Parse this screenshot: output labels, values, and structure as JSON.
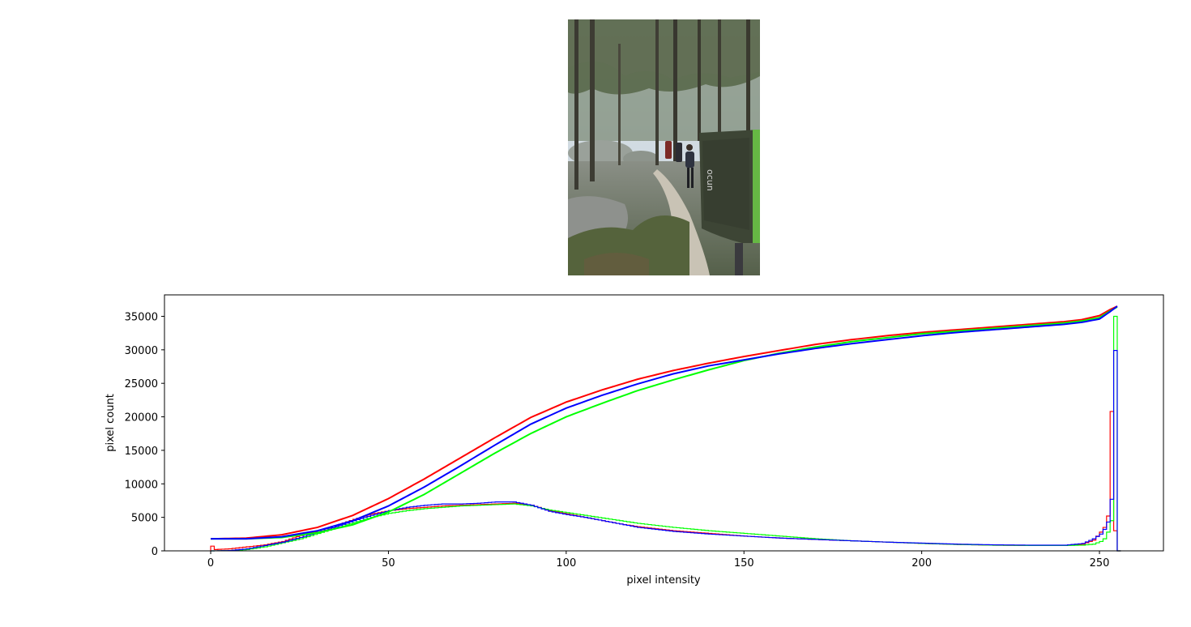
{
  "photo": {
    "subject": "forest trail with hikers and a crash pad",
    "pad_logo_text": "ocun"
  },
  "chart_data": {
    "type": "line",
    "title": "",
    "xlabel": "pixel intensity",
    "ylabel": "pixel count",
    "xlim": [
      -13,
      268
    ],
    "ylim": [
      0,
      38200
    ],
    "x_ticks": [
      0,
      50,
      100,
      150,
      200,
      250
    ],
    "y_ticks": [
      0,
      5000,
      10000,
      15000,
      20000,
      25000,
      30000,
      35000
    ],
    "grid": false,
    "legend": "none",
    "histograms": [
      {
        "color": "#ff0000",
        "points": [
          [
            0,
            700
          ],
          [
            1,
            200
          ],
          [
            5,
            300
          ],
          [
            10,
            600
          ],
          [
            15,
            900
          ],
          [
            20,
            1400
          ],
          [
            25,
            2300
          ],
          [
            30,
            3000
          ],
          [
            35,
            3800
          ],
          [
            40,
            4700
          ],
          [
            45,
            5500
          ],
          [
            50,
            6000
          ],
          [
            55,
            6300
          ],
          [
            60,
            6500
          ],
          [
            65,
            6700
          ],
          [
            70,
            6800
          ],
          [
            75,
            6900
          ],
          [
            80,
            7000
          ],
          [
            85,
            7100
          ],
          [
            90,
            6800
          ],
          [
            95,
            6000
          ],
          [
            100,
            5500
          ],
          [
            105,
            5000
          ],
          [
            110,
            4500
          ],
          [
            115,
            4000
          ],
          [
            120,
            3600
          ],
          [
            130,
            3000
          ],
          [
            140,
            2600
          ],
          [
            150,
            2200
          ],
          [
            160,
            1900
          ],
          [
            170,
            1700
          ],
          [
            180,
            1500
          ],
          [
            190,
            1300
          ],
          [
            200,
            1100
          ],
          [
            210,
            950
          ],
          [
            220,
            850
          ],
          [
            230,
            800
          ],
          [
            240,
            800
          ],
          [
            245,
            1000
          ],
          [
            248,
            1600
          ],
          [
            250,
            2800
          ],
          [
            251,
            3500
          ],
          [
            252,
            5200
          ],
          [
            253,
            20800
          ],
          [
            254,
            3000
          ],
          [
            255,
            0
          ]
        ]
      },
      {
        "color": "#00ff00",
        "points": [
          [
            0,
            0
          ],
          [
            5,
            50
          ],
          [
            10,
            200
          ],
          [
            15,
            600
          ],
          [
            20,
            1200
          ],
          [
            25,
            1800
          ],
          [
            30,
            2600
          ],
          [
            35,
            3400
          ],
          [
            40,
            4200
          ],
          [
            45,
            5000
          ],
          [
            50,
            5600
          ],
          [
            55,
            6000
          ],
          [
            60,
            6300
          ],
          [
            65,
            6500
          ],
          [
            70,
            6700
          ],
          [
            75,
            6800
          ],
          [
            80,
            6900
          ],
          [
            85,
            7000
          ],
          [
            90,
            6700
          ],
          [
            95,
            6100
          ],
          [
            100,
            5700
          ],
          [
            105,
            5300
          ],
          [
            110,
            4900
          ],
          [
            115,
            4500
          ],
          [
            120,
            4100
          ],
          [
            130,
            3500
          ],
          [
            140,
            3000
          ],
          [
            150,
            2600
          ],
          [
            160,
            2200
          ],
          [
            170,
            1800
          ],
          [
            180,
            1500
          ],
          [
            190,
            1300
          ],
          [
            200,
            1100
          ],
          [
            210,
            950
          ],
          [
            220,
            850
          ],
          [
            230,
            800
          ],
          [
            240,
            800
          ],
          [
            245,
            850
          ],
          [
            248,
            1000
          ],
          [
            250,
            1400
          ],
          [
            251,
            1800
          ],
          [
            252,
            2800
          ],
          [
            253,
            4500
          ],
          [
            254,
            35000
          ],
          [
            255,
            0
          ]
        ]
      },
      {
        "color": "#0000ff",
        "points": [
          [
            0,
            0
          ],
          [
            5,
            50
          ],
          [
            10,
            300
          ],
          [
            15,
            800
          ],
          [
            20,
            1300
          ],
          [
            25,
            2000
          ],
          [
            30,
            2800
          ],
          [
            35,
            3600
          ],
          [
            40,
            4500
          ],
          [
            45,
            5300
          ],
          [
            50,
            6000
          ],
          [
            55,
            6500
          ],
          [
            60,
            6800
          ],
          [
            65,
            7000
          ],
          [
            70,
            7000
          ],
          [
            75,
            7100
          ],
          [
            80,
            7300
          ],
          [
            85,
            7300
          ],
          [
            90,
            6800
          ],
          [
            95,
            5900
          ],
          [
            100,
            5400
          ],
          [
            105,
            5000
          ],
          [
            110,
            4500
          ],
          [
            115,
            4000
          ],
          [
            120,
            3500
          ],
          [
            130,
            2900
          ],
          [
            140,
            2500
          ],
          [
            150,
            2200
          ],
          [
            160,
            1900
          ],
          [
            170,
            1700
          ],
          [
            180,
            1500
          ],
          [
            190,
            1300
          ],
          [
            200,
            1150
          ],
          [
            210,
            1000
          ],
          [
            220,
            900
          ],
          [
            230,
            850
          ],
          [
            240,
            850
          ],
          [
            245,
            1100
          ],
          [
            248,
            1800
          ],
          [
            250,
            2500
          ],
          [
            251,
            3200
          ],
          [
            252,
            4300
          ],
          [
            253,
            7700
          ],
          [
            254,
            29900
          ],
          [
            255,
            0
          ]
        ]
      }
    ],
    "series": [
      {
        "color": "#ff0000",
        "points": [
          [
            0,
            1800
          ],
          [
            10,
            1900
          ],
          [
            20,
            2400
          ],
          [
            30,
            3500
          ],
          [
            40,
            5300
          ],
          [
            50,
            7800
          ],
          [
            60,
            10700
          ],
          [
            70,
            13800
          ],
          [
            80,
            16900
          ],
          [
            90,
            19900
          ],
          [
            100,
            22200
          ],
          [
            110,
            24000
          ],
          [
            120,
            25600
          ],
          [
            130,
            26900
          ],
          [
            140,
            28000
          ],
          [
            150,
            29000
          ],
          [
            160,
            29900
          ],
          [
            170,
            30800
          ],
          [
            180,
            31500
          ],
          [
            190,
            32100
          ],
          [
            200,
            32600
          ],
          [
            210,
            33000
          ],
          [
            220,
            33400
          ],
          [
            230,
            33800
          ],
          [
            240,
            34200
          ],
          [
            245,
            34500
          ],
          [
            250,
            35100
          ],
          [
            253,
            36000
          ],
          [
            255,
            36500
          ]
        ]
      },
      {
        "color": "#00ff00",
        "points": [
          [
            0,
            1800
          ],
          [
            10,
            1800
          ],
          [
            20,
            2000
          ],
          [
            30,
            2700
          ],
          [
            40,
            3900
          ],
          [
            50,
            5800
          ],
          [
            60,
            8400
          ],
          [
            70,
            11500
          ],
          [
            80,
            14600
          ],
          [
            90,
            17500
          ],
          [
            100,
            20000
          ],
          [
            110,
            22000
          ],
          [
            120,
            23900
          ],
          [
            130,
            25500
          ],
          [
            140,
            27000
          ],
          [
            150,
            28400
          ],
          [
            160,
            29500
          ],
          [
            170,
            30400
          ],
          [
            180,
            31200
          ],
          [
            190,
            31800
          ],
          [
            200,
            32400
          ],
          [
            210,
            32800
          ],
          [
            220,
            33200
          ],
          [
            230,
            33600
          ],
          [
            240,
            34000
          ],
          [
            245,
            34300
          ],
          [
            250,
            34800
          ],
          [
            253,
            35800
          ],
          [
            255,
            36400
          ]
        ]
      },
      {
        "color": "#0000ff",
        "points": [
          [
            0,
            1800
          ],
          [
            10,
            1800
          ],
          [
            20,
            2100
          ],
          [
            30,
            3000
          ],
          [
            40,
            4500
          ],
          [
            50,
            6700
          ],
          [
            60,
            9500
          ],
          [
            70,
            12600
          ],
          [
            80,
            15800
          ],
          [
            90,
            18900
          ],
          [
            100,
            21300
          ],
          [
            110,
            23200
          ],
          [
            120,
            24900
          ],
          [
            130,
            26400
          ],
          [
            140,
            27600
          ],
          [
            150,
            28500
          ],
          [
            160,
            29400
          ],
          [
            170,
            30200
          ],
          [
            180,
            30900
          ],
          [
            190,
            31500
          ],
          [
            200,
            32100
          ],
          [
            210,
            32600
          ],
          [
            220,
            33000
          ],
          [
            230,
            33400
          ],
          [
            240,
            33800
          ],
          [
            245,
            34100
          ],
          [
            250,
            34600
          ],
          [
            253,
            35700
          ],
          [
            255,
            36500
          ]
        ]
      }
    ]
  }
}
